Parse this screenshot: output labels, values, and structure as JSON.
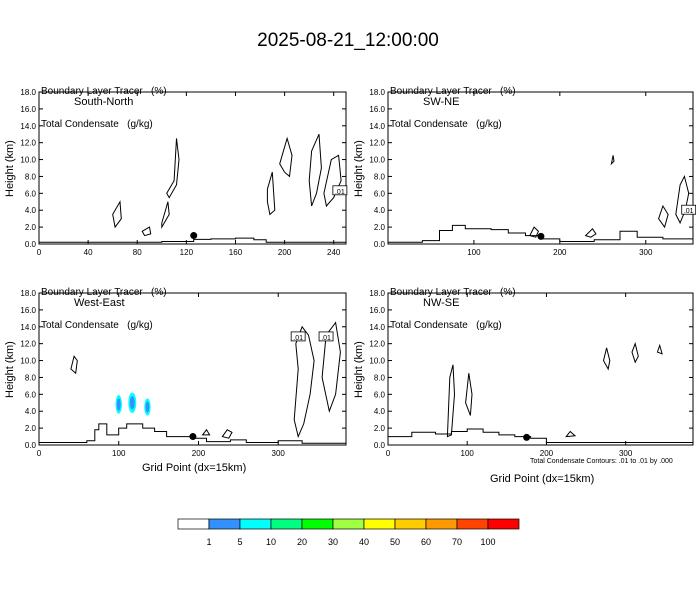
{
  "title": "2025-08-21_12:00:00",
  "footnote": "Total Condensate Contours: .01 to .01 by .000",
  "colorbar": {
    "labels": [
      "1",
      "5",
      "10",
      "20",
      "30",
      "40",
      "50",
      "60",
      "70",
      "100"
    ],
    "colors": [
      "#ffffff",
      "#3390ff",
      "#00ffff",
      "#00ff80",
      "#00ff00",
      "#a0ff40",
      "#ffff00",
      "#ffcc00",
      "#ff9900",
      "#ff4400",
      "#ff0000"
    ]
  },
  "panels": [
    {
      "id": "south-north",
      "header_line1": "Boundary Layer Tracer   (%)",
      "header_line2": "Total Condensate   (g/kg)",
      "section_label": "South-North",
      "ylabel": "Height (km)",
      "xlabel": "",
      "contour_label": ".01"
    },
    {
      "id": "sw-ne",
      "header_line1": "Boundary Layer Tracer   (%)",
      "header_line2": "Total Condensate   (g/kg)",
      "section_label": "SW-NE",
      "ylabel": "Height (km)",
      "xlabel": "",
      "contour_label": ".01"
    },
    {
      "id": "west-east",
      "header_line1": "Boundary Layer Tracer   (%)",
      "header_line2": "Total Condensate   (g/kg)",
      "section_label": "West-East",
      "ylabel": "Height (km)",
      "xlabel": "Grid Point (dx=15km)",
      "contour_label": ".01"
    },
    {
      "id": "nw-se",
      "header_line1": "Boundary Layer Tracer   (%)",
      "header_line2": "Total Condensate   (g/kg)",
      "section_label": "NW-SE",
      "ylabel": "Height (km)",
      "xlabel": "Grid Point (dx=15km)",
      "contour_label": ""
    }
  ],
  "chart_data": [
    {
      "type": "heatmap",
      "name": "South-North",
      "xlim": [
        0,
        250
      ],
      "ylim": [
        0,
        18
      ],
      "xticks": [
        0,
        40,
        80,
        120,
        160,
        200,
        240
      ],
      "yticks": [
        "0.0",
        "2.0",
        "4.0",
        "6.0",
        "8.0",
        "10.0",
        "12.0",
        "14.0",
        "16.0",
        "18.0"
      ],
      "marker": {
        "x": 126,
        "y": 1.0
      },
      "terrain": [
        [
          0,
          0.2
        ],
        [
          60,
          0.2
        ],
        [
          100,
          0.3
        ],
        [
          126,
          0.55
        ],
        [
          140,
          0.6
        ],
        [
          160,
          0.7
        ],
        [
          175,
          0.5
        ],
        [
          185,
          0.2
        ],
        [
          250,
          0.2
        ]
      ],
      "contour_label_at": {
        "x": 245,
        "y": 6.3
      },
      "tracer_patches": []
    },
    {
      "type": "heatmap",
      "name": "SW-NE",
      "xlim": [
        0,
        355
      ],
      "ylim": [
        0,
        18
      ],
      "xticks": [
        100,
        200,
        300
      ],
      "yticks": [
        "0.0",
        "2.0",
        "4.0",
        "6.0",
        "8.0",
        "10.0",
        "12.0",
        "14.0",
        "16.0",
        "18.0"
      ],
      "marker": {
        "x": 178,
        "y": 0.9
      },
      "terrain": [
        [
          0,
          0.2
        ],
        [
          40,
          0.4
        ],
        [
          60,
          1.6
        ],
        [
          75,
          2.2
        ],
        [
          90,
          1.8
        ],
        [
          120,
          1.7
        ],
        [
          140,
          1.3
        ],
        [
          160,
          1.0
        ],
        [
          180,
          0.6
        ],
        [
          200,
          0.3
        ],
        [
          240,
          0.5
        ],
        [
          270,
          1.5
        ],
        [
          290,
          0.8
        ],
        [
          320,
          0.6
        ],
        [
          355,
          0.3
        ]
      ],
      "contour_label_at": {
        "x": 350,
        "y": 4.0
      },
      "tracer_patches": []
    },
    {
      "type": "heatmap",
      "name": "West-East",
      "xlim": [
        0,
        385
      ],
      "ylim": [
        0,
        18
      ],
      "xticks": [
        0,
        100,
        200,
        300
      ],
      "yticks": [
        "0.0",
        "2.0",
        "4.0",
        "6.0",
        "8.0",
        "10.0",
        "12.0",
        "14.0",
        "16.0",
        "18.0"
      ],
      "marker": {
        "x": 193,
        "y": 1.0
      },
      "terrain": [
        [
          0,
          0.3
        ],
        [
          60,
          0.5
        ],
        [
          70,
          1.8
        ],
        [
          75,
          2.5
        ],
        [
          85,
          1.2
        ],
        [
          100,
          2.0
        ],
        [
          110,
          2.5
        ],
        [
          130,
          2.0
        ],
        [
          145,
          1.6
        ],
        [
          160,
          1.0
        ],
        [
          190,
          0.8
        ],
        [
          210,
          0.4
        ],
        [
          240,
          0.6
        ],
        [
          260,
          0.3
        ],
        [
          300,
          0.5
        ],
        [
          330,
          0.2
        ],
        [
          385,
          0.3
        ]
      ],
      "contour_label_at": [
        {
          "x": 325,
          "y": 12.8
        },
        {
          "x": 360,
          "y": 12.8
        }
      ],
      "tracer_patches": [
        {
          "x": 100,
          "y": 4.8,
          "w": 8,
          "h": 2.2,
          "level": "5"
        },
        {
          "x": 117,
          "y": 5.0,
          "w": 10,
          "h": 2.4,
          "level": "5"
        },
        {
          "x": 136,
          "y": 4.5,
          "w": 8,
          "h": 2.0,
          "level": "5"
        }
      ]
    },
    {
      "type": "heatmap",
      "name": "NW-SE",
      "xlim": [
        0,
        385
      ],
      "ylim": [
        0,
        18
      ],
      "xticks": [
        0,
        100,
        200,
        300
      ],
      "yticks": [
        "0.0",
        "2.0",
        "4.0",
        "6.0",
        "8.0",
        "10.0",
        "12.0",
        "14.0",
        "16.0",
        "18.0"
      ],
      "marker": {
        "x": 175,
        "y": 0.9
      },
      "terrain": [
        [
          0,
          1.0
        ],
        [
          30,
          1.5
        ],
        [
          60,
          1.3
        ],
        [
          80,
          1.6
        ],
        [
          100,
          1.9
        ],
        [
          120,
          1.5
        ],
        [
          140,
          1.2
        ],
        [
          160,
          1.0
        ],
        [
          180,
          0.8
        ],
        [
          200,
          0.3
        ],
        [
          385,
          0.2
        ]
      ],
      "contour_label_at": null,
      "tracer_patches": []
    }
  ]
}
